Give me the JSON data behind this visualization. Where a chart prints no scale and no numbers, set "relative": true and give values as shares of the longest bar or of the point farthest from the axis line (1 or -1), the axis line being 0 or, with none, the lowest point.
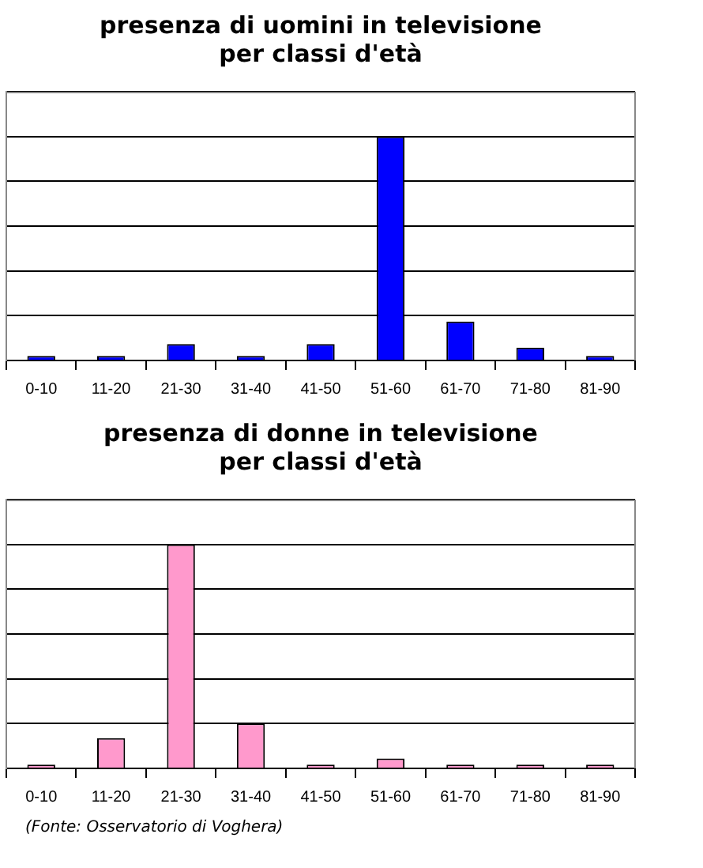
{
  "chart_data": [
    {
      "type": "bar",
      "title": "presenza di uomini in televisione\nper classi d'età",
      "categories": [
        "0-10",
        "11-20",
        "21-30",
        "31-40",
        "41-50",
        "51-60",
        "61-70",
        "71-80",
        "81-90"
      ],
      "values": [
        0.02,
        0.02,
        0.073,
        0.02,
        0.073,
        1,
        0.174,
        0.057,
        0.02
      ],
      "color": "#0000ff",
      "relative": true,
      "grid": "y"
    },
    {
      "type": "bar",
      "title": "presenza di donne in televisione\nper classi d'età",
      "categories": [
        "0-10",
        "11-20",
        "21-30",
        "31-40",
        "41-50",
        "51-60",
        "61-70",
        "71-80",
        "81-90"
      ],
      "values": [
        0.017,
        0.135,
        1,
        0.2,
        0.017,
        0.044,
        0.017,
        0.017,
        0.017
      ],
      "color": "#ff99cc",
      "relative": true,
      "grid": "y",
      "annotations": [
        "(Fonte: Osservatorio di Voghera)"
      ]
    }
  ]
}
